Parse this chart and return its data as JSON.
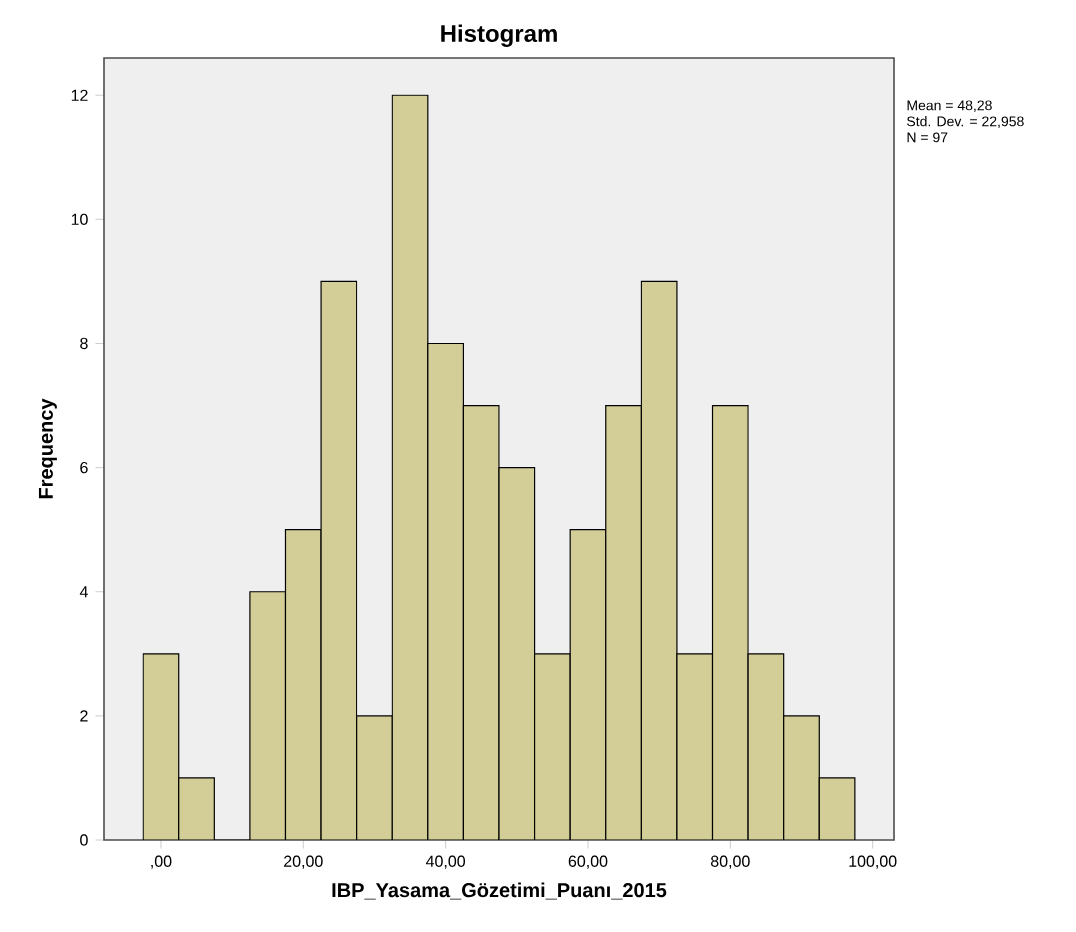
{
  "chart_data": {
    "type": "histogram",
    "title": "Histogram",
    "xlabel": "IBP_Yasama_Gözetimi_Puanı_2015",
    "ylabel": "Frequency",
    "bins": [
      -2.5,
      2.5,
      7.5,
      12.5,
      17.5,
      22.5,
      27.5,
      32.5,
      37.5,
      42.5,
      47.5,
      52.5,
      57.5,
      62.5,
      67.5,
      72.5,
      77.5,
      82.5,
      87.5,
      92.5,
      97.5
    ],
    "values": [
      3,
      1,
      0,
      4,
      5,
      9,
      2,
      12,
      8,
      7,
      6,
      3,
      5,
      7,
      9,
      3,
      7,
      3,
      2,
      1
    ],
    "color": "#d3ce97",
    "xlim": [
      -8,
      103
    ],
    "ylim": [
      0,
      12.6
    ],
    "xticks": [
      {
        "value": 0,
        "label": ",00"
      },
      {
        "value": 20,
        "label": "20,00"
      },
      {
        "value": 40,
        "label": "40,00"
      },
      {
        "value": 60,
        "label": "60,00"
      },
      {
        "value": 80,
        "label": "80,00"
      },
      {
        "value": 100,
        "label": "100,00"
      }
    ],
    "yticks": [
      0,
      2,
      4,
      6,
      8,
      10,
      12
    ],
    "annotations": [
      "Mean = 48,28",
      "Std. Dev. = 22,958",
      "N = 97"
    ]
  }
}
